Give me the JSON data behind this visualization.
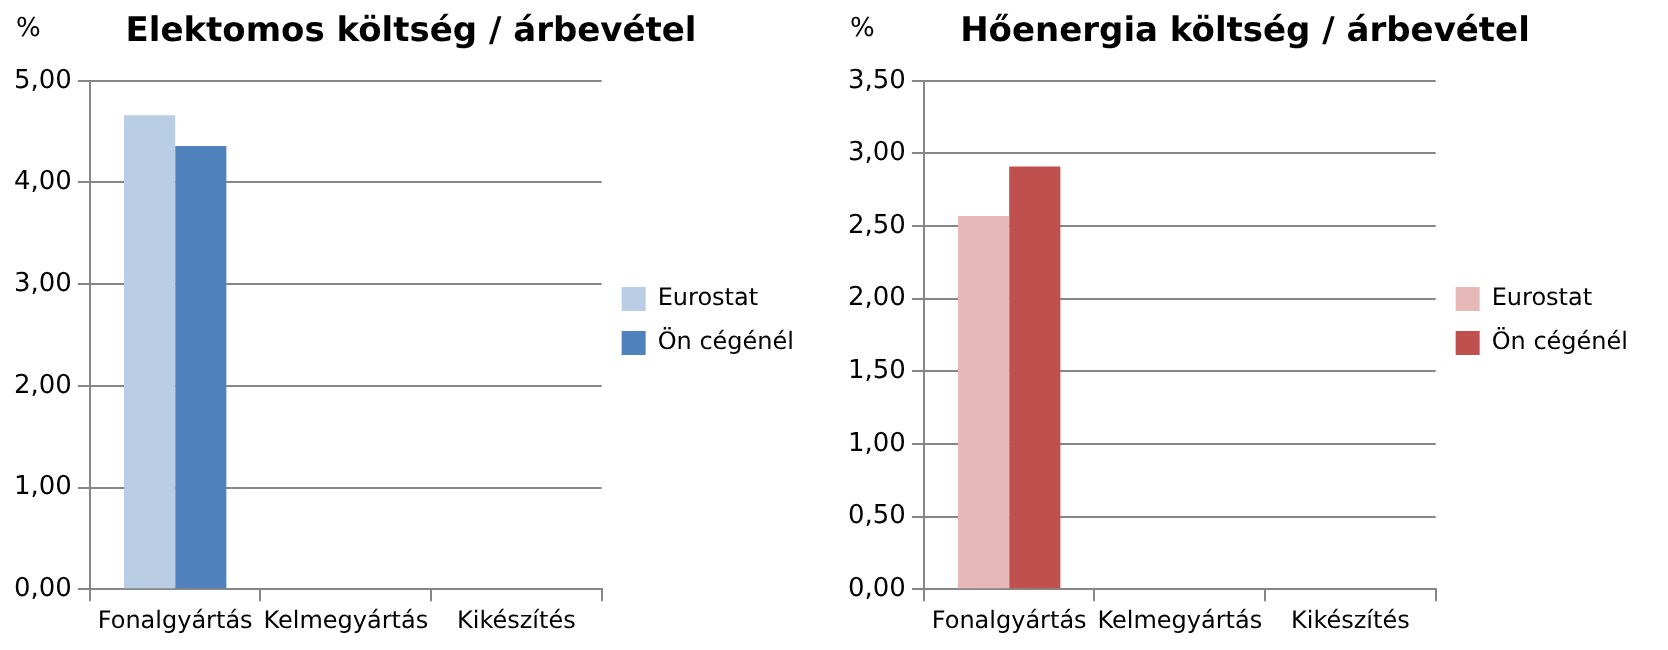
{
  "chart_data": [
    {
      "type": "bar",
      "title": "Elektomos költség / árbevétel",
      "ylabel": "%",
      "categories": [
        "Fonalgyártás",
        "Kelmegyártás",
        "Kikészítés"
      ],
      "series": [
        {
          "name": "Eurostat",
          "color": "#b9cde5",
          "values": [
            4.66,
            null,
            null
          ]
        },
        {
          "name": "Ön cégénél",
          "color": "#4f81bd",
          "values": [
            4.36,
            null,
            null
          ]
        }
      ],
      "ylim": [
        0,
        5
      ],
      "yticks": [
        {
          "value": 0,
          "label": "0,00"
        },
        {
          "value": 1,
          "label": "1,00"
        },
        {
          "value": 2,
          "label": "2,00"
        },
        {
          "value": 3,
          "label": "3,00"
        },
        {
          "value": 4,
          "label": "4,00"
        },
        {
          "value": 5,
          "label": "5,00"
        }
      ],
      "grid": "y",
      "legend": "right"
    },
    {
      "type": "bar",
      "title": "Hőenergia költség / árbevétel",
      "ylabel": "%",
      "categories": [
        "Fonalgyártás",
        "Kelmegyártás",
        "Kikészítés"
      ],
      "series": [
        {
          "name": "Eurostat",
          "color": "#e6b9b8",
          "values": [
            2.57,
            null,
            null
          ]
        },
        {
          "name": "Ön cégénél",
          "color": "#c0504d",
          "values": [
            2.91,
            null,
            null
          ]
        }
      ],
      "ylim": [
        0,
        3.5
      ],
      "yticks": [
        {
          "value": 0,
          "label": "0,00"
        },
        {
          "value": 0.5,
          "label": "0,50"
        },
        {
          "value": 1,
          "label": "1,00"
        },
        {
          "value": 1.5,
          "label": "1,50"
        },
        {
          "value": 2,
          "label": "2,00"
        },
        {
          "value": 2.5,
          "label": "2,50"
        },
        {
          "value": 3,
          "label": "3,00"
        },
        {
          "value": 3.5,
          "label": "3,50"
        }
      ],
      "grid": "y",
      "legend": "right"
    }
  ]
}
